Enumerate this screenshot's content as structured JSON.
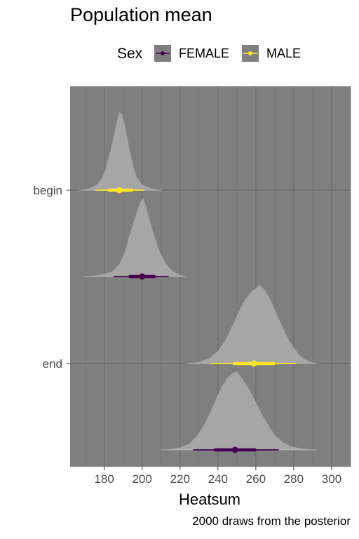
{
  "chart_data": {
    "type": "halfeye",
    "title": "Population mean",
    "xlabel": "Heatsum",
    "ylabel": "",
    "caption": "2000 draws from the posterior",
    "xlim": [
      162,
      310
    ],
    "x_ticks": [
      180,
      200,
      220,
      240,
      260,
      280,
      300
    ],
    "categories": [
      "begin",
      "end"
    ],
    "legend": {
      "title": "Sex",
      "position": "top",
      "items": [
        {
          "name": "FEMALE",
          "color": "#440154"
        },
        {
          "name": "MALE",
          "color": "#FDE725"
        }
      ]
    },
    "panel_background": "#7f7f7f",
    "density_fill": "#a6a6a6",
    "grid": true,
    "series": [
      {
        "name": "MALE",
        "category": "begin",
        "color": "#FDE725",
        "median": 188,
        "interval_66": [
          182,
          195
        ],
        "interval_95": [
          175,
          201
        ],
        "density_range": [
          167,
          210
        ],
        "density": [
          [
            167,
            0
          ],
          [
            172,
            0.02
          ],
          [
            176,
            0.07
          ],
          [
            179,
            0.16
          ],
          [
            181,
            0.3
          ],
          [
            183,
            0.48
          ],
          [
            185,
            0.68
          ],
          [
            186.5,
            0.86
          ],
          [
            188,
            1.0
          ],
          [
            189.5,
            0.96
          ],
          [
            191,
            0.82
          ],
          [
            193,
            0.56
          ],
          [
            195,
            0.33
          ],
          [
            197,
            0.17
          ],
          [
            200,
            0.07
          ],
          [
            205,
            0.02
          ],
          [
            210,
            0
          ]
        ]
      },
      {
        "name": "FEMALE",
        "category": "begin",
        "color": "#440154",
        "median": 200,
        "interval_66": [
          193,
          207
        ],
        "interval_95": [
          185,
          214
        ],
        "density_range": [
          169,
          223
        ],
        "density": [
          [
            169,
            0
          ],
          [
            178,
            0.02
          ],
          [
            184,
            0.06
          ],
          [
            188,
            0.16
          ],
          [
            191,
            0.32
          ],
          [
            193,
            0.5
          ],
          [
            195,
            0.65
          ],
          [
            197,
            0.8
          ],
          [
            199,
            0.95
          ],
          [
            200.5,
            1.0
          ],
          [
            202,
            0.9
          ],
          [
            204,
            0.72
          ],
          [
            206,
            0.55
          ],
          [
            208,
            0.4
          ],
          [
            210,
            0.28
          ],
          [
            213,
            0.15
          ],
          [
            216,
            0.07
          ],
          [
            219,
            0.03
          ],
          [
            223,
            0
          ]
        ]
      },
      {
        "name": "MALE",
        "category": "end",
        "color": "#FDE725",
        "median": 259,
        "interval_66": [
          248,
          270
        ],
        "interval_95": [
          236,
          281
        ],
        "density_range": [
          224,
          292
        ],
        "density": [
          [
            224,
            0
          ],
          [
            230,
            0.02
          ],
          [
            235,
            0.06
          ],
          [
            240,
            0.16
          ],
          [
            244,
            0.3
          ],
          [
            248,
            0.5
          ],
          [
            251,
            0.66
          ],
          [
            254,
            0.8
          ],
          [
            257,
            0.9
          ],
          [
            260,
            0.96
          ],
          [
            262,
            1.0
          ],
          [
            265,
            0.93
          ],
          [
            268,
            0.8
          ],
          [
            271,
            0.63
          ],
          [
            274,
            0.47
          ],
          [
            277,
            0.32
          ],
          [
            280,
            0.2
          ],
          [
            283,
            0.11
          ],
          [
            286,
            0.05
          ],
          [
            289,
            0.02
          ],
          [
            292,
            0
          ]
        ]
      },
      {
        "name": "FEMALE",
        "category": "end",
        "color": "#440154",
        "median": 249,
        "interval_66": [
          238,
          260
        ],
        "interval_95": [
          227,
          272
        ],
        "density_range": [
          210,
          292
        ],
        "density": [
          [
            210,
            0
          ],
          [
            215,
            0.01
          ],
          [
            220,
            0.03
          ],
          [
            225,
            0.08
          ],
          [
            229,
            0.18
          ],
          [
            233,
            0.33
          ],
          [
            236,
            0.48
          ],
          [
            239,
            0.65
          ],
          [
            242,
            0.8
          ],
          [
            245,
            0.92
          ],
          [
            248,
            0.98
          ],
          [
            250,
            1.0
          ],
          [
            252,
            0.93
          ],
          [
            255,
            0.83
          ],
          [
            258,
            0.7
          ],
          [
            261,
            0.56
          ],
          [
            264,
            0.42
          ],
          [
            267,
            0.3
          ],
          [
            270,
            0.19
          ],
          [
            274,
            0.1
          ],
          [
            278,
            0.05
          ],
          [
            283,
            0.02
          ],
          [
            288,
            0.005
          ],
          [
            292,
            0
          ]
        ]
      }
    ]
  }
}
